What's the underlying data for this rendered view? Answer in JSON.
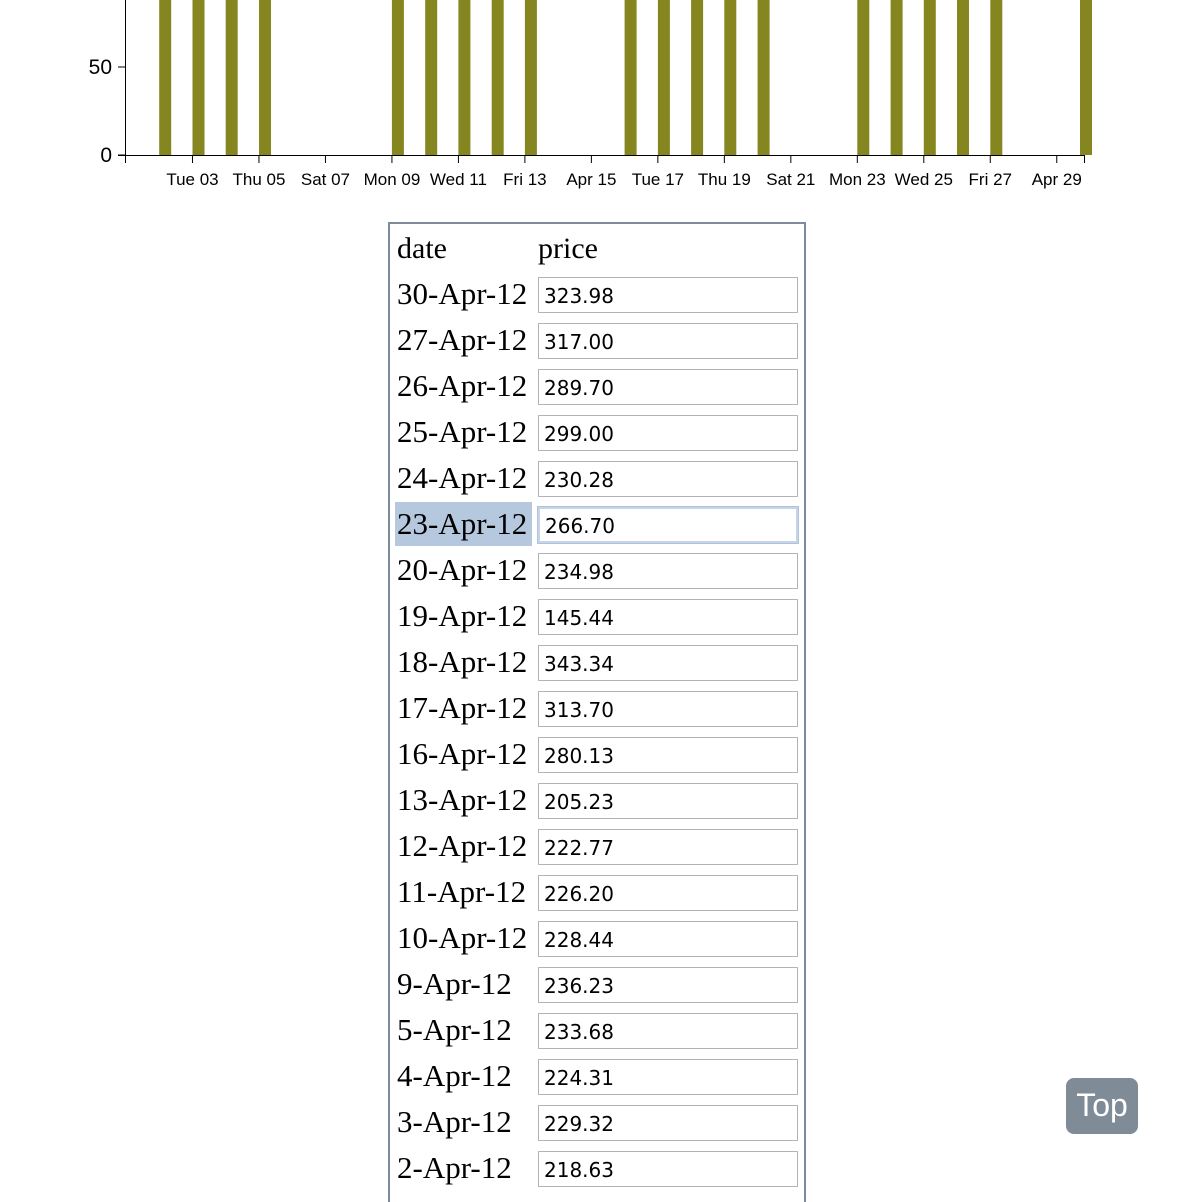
{
  "chart_data": {
    "type": "bar",
    "color": "#868620",
    "ylim": [
      0,
      100
    ],
    "y_ticks": [
      0,
      50
    ],
    "xlabel": "",
    "ylabel": "",
    "x_ticks": [
      "Tue 03",
      "Thu 05",
      "Sat 07",
      "Mon 09",
      "Wed 11",
      "Fri 13",
      "Apr 15",
      "Tue 17",
      "Thu 19",
      "Sat 21",
      "Mon 23",
      "Wed 25",
      "Fri 27",
      "Apr 29"
    ],
    "categories": [
      "2012-04-02",
      "2012-04-03",
      "2012-04-04",
      "2012-04-05",
      "2012-04-09",
      "2012-04-10",
      "2012-04-11",
      "2012-04-12",
      "2012-04-13",
      "2012-04-16",
      "2012-04-17",
      "2012-04-18",
      "2012-04-19",
      "2012-04-20",
      "2012-04-23",
      "2012-04-24",
      "2012-04-25",
      "2012-04-26",
      "2012-04-27",
      "2012-04-30"
    ],
    "values": [
      218.63,
      229.32,
      224.31,
      233.68,
      236.23,
      228.44,
      226.2,
      222.77,
      205.23,
      280.13,
      313.7,
      343.34,
      145.44,
      234.98,
      266.7,
      230.28,
      299.0,
      289.7,
      317.0,
      323.98
    ]
  },
  "table": {
    "headers": {
      "date": "date",
      "price": "price"
    },
    "rows": [
      {
        "date": "30-Apr-12",
        "price": "323.98"
      },
      {
        "date": "27-Apr-12",
        "price": "317.00"
      },
      {
        "date": "26-Apr-12",
        "price": "289.70"
      },
      {
        "date": "25-Apr-12",
        "price": "299.00"
      },
      {
        "date": "24-Apr-12",
        "price": "230.28"
      },
      {
        "date": "23-Apr-12",
        "price": "266.70"
      },
      {
        "date": "20-Apr-12",
        "price": "234.98"
      },
      {
        "date": "19-Apr-12",
        "price": "145.44"
      },
      {
        "date": "18-Apr-12",
        "price": "343.34"
      },
      {
        "date": "17-Apr-12",
        "price": "313.70"
      },
      {
        "date": "16-Apr-12",
        "price": "280.13"
      },
      {
        "date": "13-Apr-12",
        "price": "205.23"
      },
      {
        "date": "12-Apr-12",
        "price": "222.77"
      },
      {
        "date": "11-Apr-12",
        "price": "226.20"
      },
      {
        "date": "10-Apr-12",
        "price": "228.44"
      },
      {
        "date": "9-Apr-12",
        "price": "236.23"
      },
      {
        "date": "5-Apr-12",
        "price": "233.68"
      },
      {
        "date": "4-Apr-12",
        "price": "224.31"
      },
      {
        "date": "3-Apr-12",
        "price": "229.32"
      },
      {
        "date": "2-Apr-12",
        "price": "218.63"
      }
    ],
    "selected_date": "23-Apr-12"
  },
  "top_button": {
    "label": "Top"
  }
}
